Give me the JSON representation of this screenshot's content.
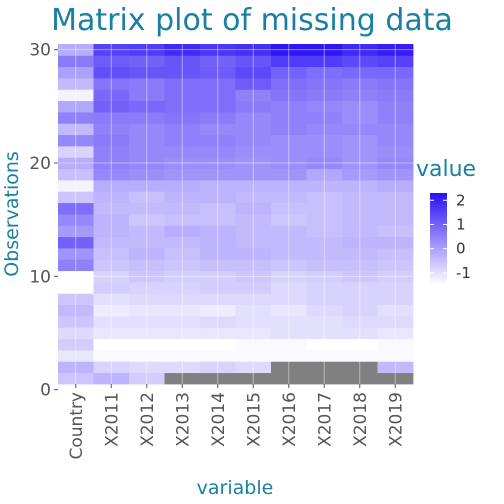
{
  "chart_data": {
    "type": "heatmap",
    "title": "Matrix plot of missing data",
    "xlabel": "variable",
    "ylabel": "Observations",
    "x_categories": [
      "Country",
      "X2011",
      "X2012",
      "X2013",
      "X2014",
      "X2015",
      "X2016",
      "X2017",
      "X2018",
      "X2019"
    ],
    "y_range": [
      0.5,
      30.5
    ],
    "y_ticks": [
      0,
      10,
      20,
      30
    ],
    "color_scale": {
      "low": -1.5,
      "high": 2.3,
      "low_color": "#ffffff",
      "high_color": "#2b10f5",
      "missing_color": "#808080"
    },
    "legend": {
      "title": "value",
      "ticks": [
        2,
        1,
        0,
        -1
      ],
      "placement": "right"
    },
    "grid": true,
    "rows": [
      [
        -0.6,
        -0.3,
        -0.7,
        null,
        null,
        null,
        null,
        null,
        null,
        null
      ],
      [
        -0.3,
        -0.8,
        -0.9,
        -0.9,
        -0.8,
        -0.9,
        null,
        null,
        null,
        -0.4
      ],
      [
        -1.1,
        -1.4,
        -1.4,
        -1.4,
        -1.4,
        -1.4,
        -1.4,
        -1.4,
        -1.4,
        -1.4
      ],
      [
        -0.7,
        -1.6,
        -1.5,
        -1.5,
        -1.5,
        -1.4,
        -1.4,
        -1.5,
        -1.5,
        -1.4
      ],
      [
        -0.9,
        -1.1,
        -1.1,
        -1.1,
        -1.1,
        -1.1,
        -1.0,
        -1.0,
        -1.0,
        -1.1
      ],
      [
        -0.6,
        -1.0,
        -1.0,
        -1.0,
        -0.9,
        -1.0,
        -1.0,
        -1.0,
        -0.9,
        -0.9
      ],
      [
        -0.4,
        -1.2,
        -1.1,
        -1.1,
        -1.2,
        -1.0,
        -1.1,
        -0.9,
        -0.8,
        -1.0
      ],
      [
        -0.6,
        -1.0,
        -0.9,
        -0.9,
        -0.9,
        -0.9,
        -0.9,
        -0.8,
        -0.8,
        -0.8
      ],
      [
        -1.5,
        -0.7,
        -0.8,
        -0.8,
        -0.7,
        -0.7,
        -0.9,
        -0.8,
        -0.8,
        -0.8
      ],
      [
        -1.5,
        -0.8,
        -0.6,
        -0.7,
        -0.7,
        -0.6,
        -0.8,
        -0.7,
        -0.6,
        -0.7
      ],
      [
        0.5,
        -0.6,
        -0.5,
        -0.6,
        -0.5,
        -0.5,
        -0.6,
        -0.5,
        -0.5,
        -0.6
      ],
      [
        0.2,
        -0.5,
        -0.3,
        -0.5,
        -0.3,
        -0.3,
        -0.4,
        -0.4,
        -0.4,
        -0.5
      ],
      [
        1.0,
        -0.4,
        -0.4,
        -0.4,
        -0.3,
        -0.4,
        -0.4,
        -0.4,
        -0.3,
        -0.3
      ],
      [
        0.1,
        -0.3,
        -0.4,
        -0.2,
        -0.3,
        -0.4,
        -0.4,
        -0.5,
        -0.4,
        -0.5
      ],
      [
        0.4,
        -0.3,
        -0.6,
        -0.5,
        -0.5,
        -0.4,
        -0.6,
        -0.5,
        -0.4,
        -0.4
      ],
      [
        0.8,
        -0.4,
        -0.4,
        -0.4,
        -0.5,
        -0.3,
        -0.5,
        -0.5,
        -0.4,
        -0.4
      ],
      [
        -0.6,
        -0.3,
        -0.5,
        -0.3,
        -0.3,
        -0.4,
        -0.4,
        -0.5,
        -0.4,
        -0.4
      ],
      [
        -1.3,
        -0.2,
        -0.2,
        -0.2,
        -0.3,
        -0.3,
        -0.3,
        -0.3,
        -0.3,
        -0.2
      ],
      [
        -0.5,
        0.4,
        0.3,
        0.2,
        0.2,
        0.2,
        0.2,
        -0.1,
        0.1,
        0.2
      ],
      [
        -0.2,
        0.5,
        0.4,
        0.3,
        0.3,
        0.2,
        0.3,
        0.4,
        0.2,
        0.4
      ],
      [
        -0.8,
        0.5,
        0.4,
        0.4,
        0.4,
        0.3,
        0.3,
        0.3,
        0.2,
        0.3
      ],
      [
        0.4,
        0.6,
        0.4,
        0.5,
        0.5,
        0.4,
        0.3,
        0.3,
        0.2,
        0.4
      ],
      [
        -0.4,
        0.5,
        0.4,
        0.5,
        0.4,
        0.4,
        0.5,
        0.4,
        0.4,
        0.4
      ],
      [
        0.5,
        0.6,
        0.6,
        0.7,
        0.6,
        0.4,
        0.5,
        0.5,
        0.3,
        0.5
      ],
      [
        -0.1,
        1.0,
        0.9,
        0.8,
        0.8,
        0.6,
        0.5,
        0.4,
        0.3,
        0.5
      ],
      [
        -1.3,
        0.9,
        0.6,
        0.8,
        0.8,
        0.5,
        0.7,
        0.6,
        0.5,
        0.6
      ],
      [
        -0.4,
        0.7,
        0.6,
        0.8,
        0.8,
        1.1,
        0.8,
        0.7,
        0.6,
        0.7
      ],
      [
        0.0,
        1.3,
        1.2,
        1.2,
        1.1,
        1.4,
        1.0,
        0.8,
        0.9,
        0.9
      ],
      [
        0.6,
        1.1,
        1.0,
        1.2,
        1.0,
        1.2,
        1.6,
        1.6,
        1.4,
        1.5
      ],
      [
        -0.2,
        1.5,
        1.6,
        1.9,
        1.7,
        1.8,
        2.2,
        2.2,
        1.9,
        2.1
      ]
    ]
  }
}
